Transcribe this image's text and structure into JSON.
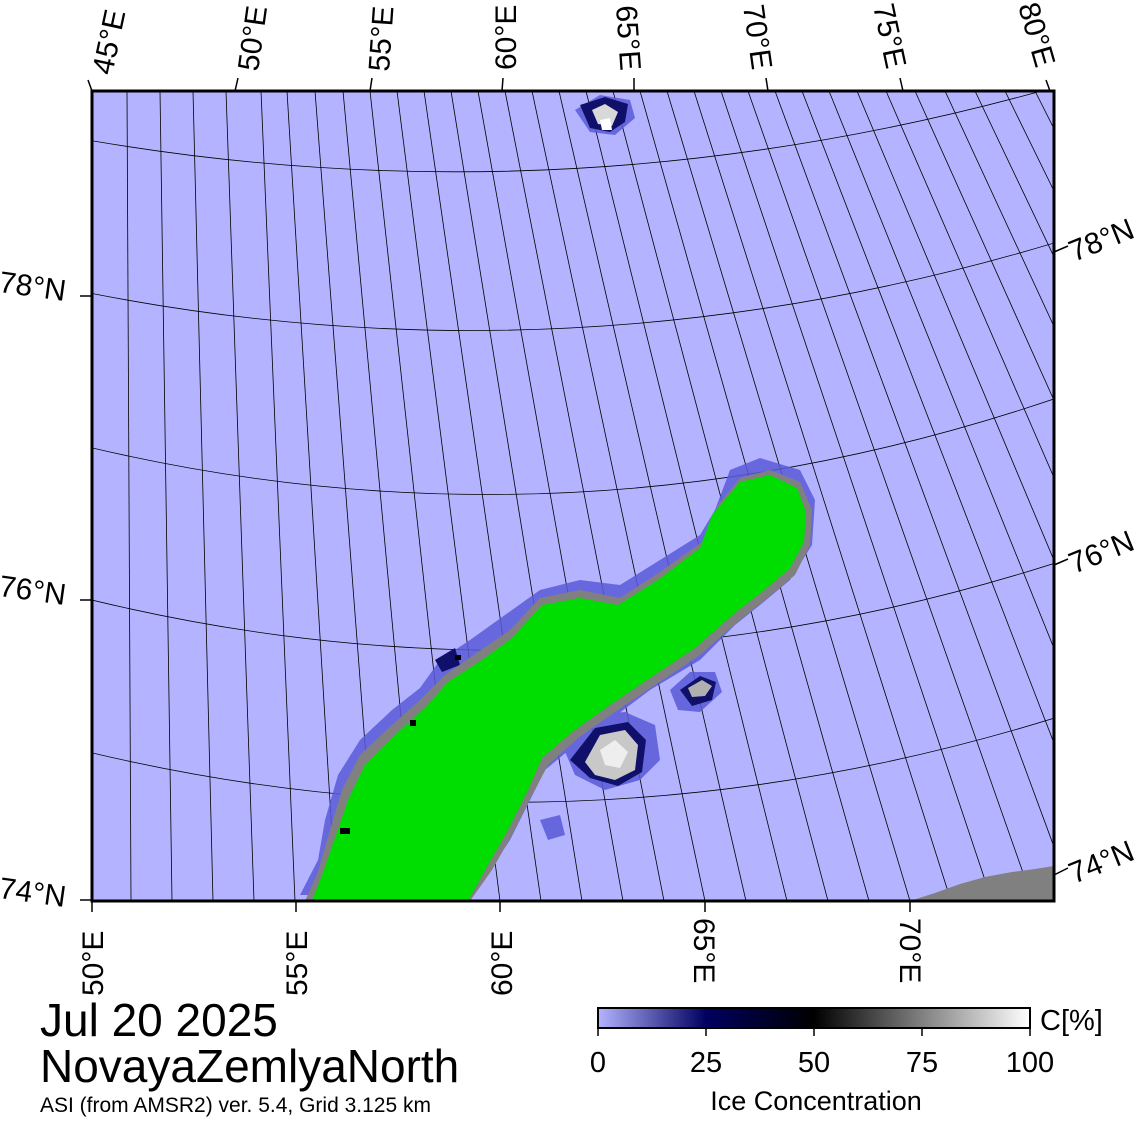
{
  "title": {
    "date": "Jul 20 2025",
    "region": "NovayaZemlyaNorth",
    "source": "ASI (from AMSR2) ver. 5.4,  Grid 3.125 km"
  },
  "map": {
    "top_lon_labels": [
      "45°E",
      "50°E",
      "55°E",
      "60°E",
      "65°E",
      "70°E",
      "75°E",
      "80°E"
    ],
    "bottom_lon_labels": [
      "50°E",
      "55°E",
      "60°E",
      "65°E",
      "70°E"
    ],
    "left_lat_labels": [
      "78°N",
      "76°N",
      "74°N"
    ],
    "right_lat_labels": [
      "78°N",
      "76°N",
      "74°N"
    ],
    "colors": {
      "open_water": "#b3b3ff",
      "land": "#00dd00",
      "coast_ice": "#808080",
      "graticule": "#000000"
    }
  },
  "colorbar": {
    "unit_label": "C[%]",
    "title": "Ice Concentration",
    "ticks": [
      "0",
      "25",
      "50",
      "75",
      "100"
    ],
    "stops": [
      "#b3b3ff",
      "#5050e0",
      "#000050",
      "#000000",
      "#808080",
      "#ffffff"
    ]
  }
}
